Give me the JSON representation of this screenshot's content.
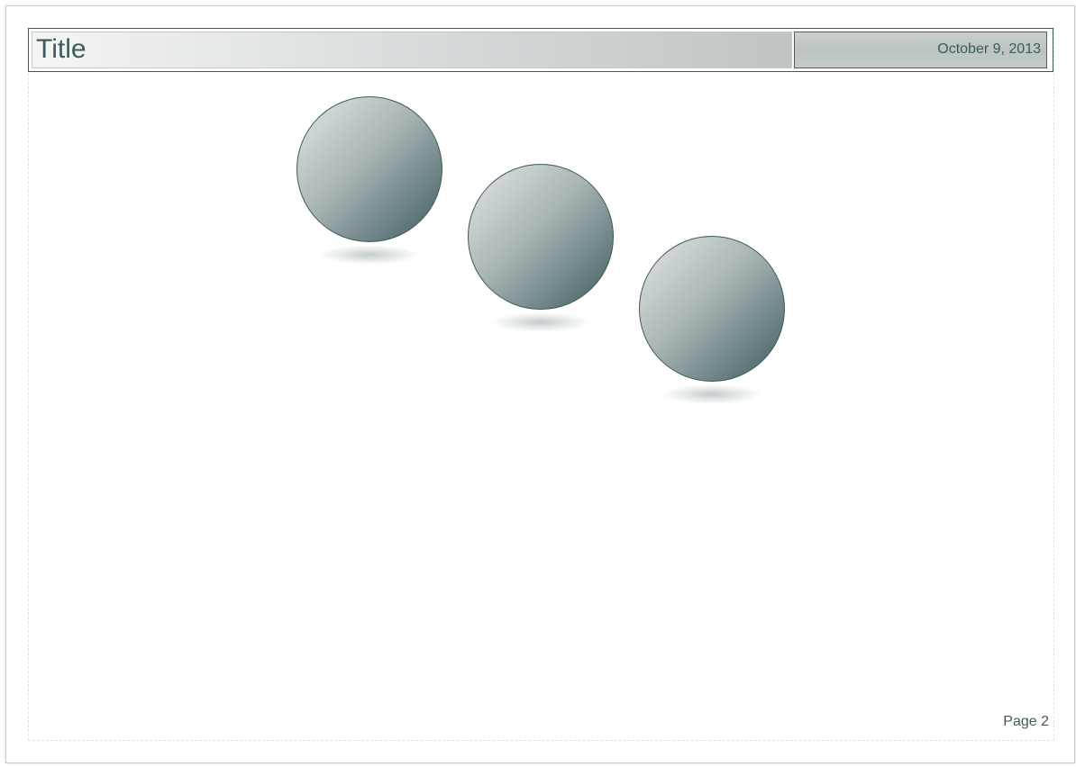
{
  "slide": {
    "title": "Title",
    "date": "October 9, 2013",
    "page_number": "Page 2"
  },
  "colors": {
    "accent": "#3e5a5c",
    "sphere_light": "#e3e7e7",
    "sphere_dark": "#415d60",
    "title_gradient_end": "#bfc5c5"
  },
  "shapes": [
    {
      "kind": "sphere"
    },
    {
      "kind": "sphere"
    },
    {
      "kind": "sphere"
    }
  ]
}
